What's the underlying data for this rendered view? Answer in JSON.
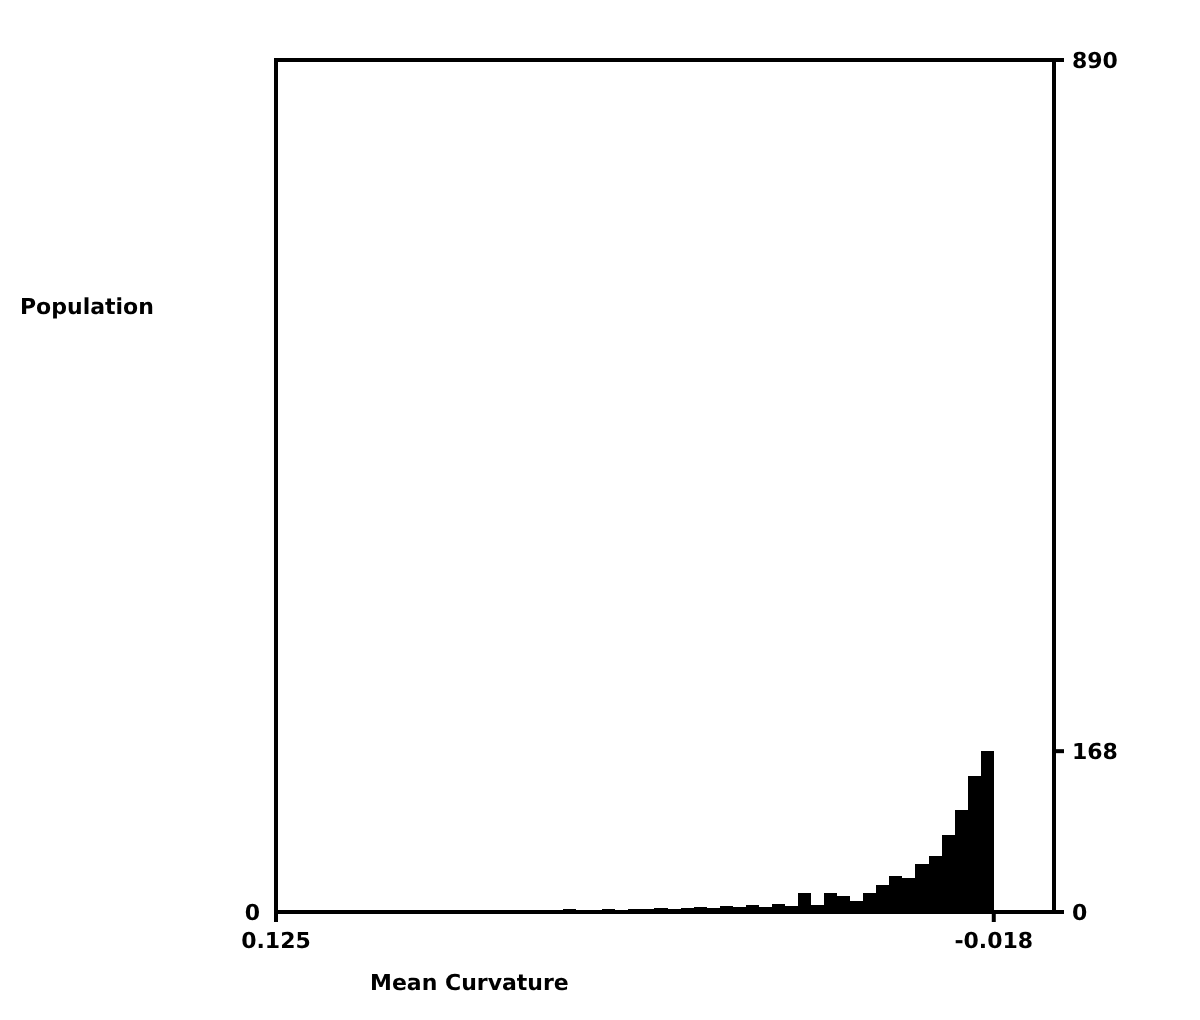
{
  "chart_data": {
    "type": "histogram",
    "xlabel": "Mean Curvature",
    "ylabel": "Population",
    "color": "#000000",
    "bins": [
      0.125,
      0.1224,
      0.1198,
      0.1172,
      0.1146,
      0.112,
      0.1094,
      0.1068,
      0.1042,
      0.1016,
      0.099,
      0.0964,
      0.0938,
      0.0912,
      0.0886,
      0.086,
      0.0834,
      0.0808,
      0.0782,
      0.0756,
      0.073,
      0.0704,
      0.0678,
      0.0652,
      0.0626,
      0.06,
      0.0574,
      0.0548,
      0.0522,
      0.0496,
      0.047,
      0.0444,
      0.0418,
      0.0392,
      0.0366,
      0.034,
      0.0314,
      0.0288,
      0.0262,
      0.0236,
      0.021,
      0.0184,
      0.0158,
      0.0132,
      0.0106,
      0.008,
      0.0054,
      0.0028,
      0.0002,
      -0.0024,
      -0.005,
      -0.0076,
      -0.0102,
      -0.0128,
      -0.0154,
      -0.018
    ],
    "values": [
      1,
      0,
      1,
      1,
      0,
      1,
      1,
      1,
      0,
      1,
      1,
      2,
      1,
      1,
      2,
      1,
      1,
      2,
      2,
      1,
      2,
      2,
      3,
      2,
      2,
      3,
      2,
      3,
      3,
      4,
      3,
      4,
      5,
      4,
      6,
      5,
      7,
      5,
      8,
      6,
      20,
      7,
      20,
      17,
      12,
      20,
      28,
      38,
      35,
      50,
      58,
      80,
      107,
      142,
      168
    ],
    "xlim": [
      0.125,
      -0.03
    ],
    "xticks": [
      0.125,
      -0.018
    ],
    "ylim": [
      0,
      890
    ],
    "yticks": [
      0,
      168,
      890
    ],
    "annotations": [
      "0"
    ]
  }
}
